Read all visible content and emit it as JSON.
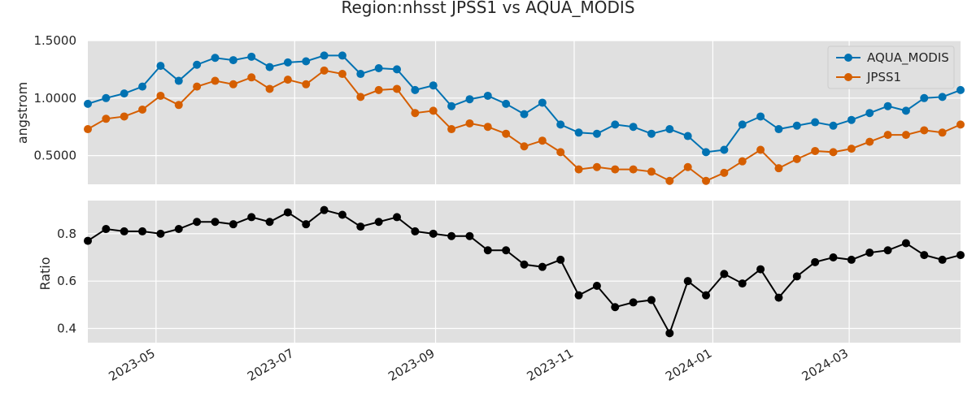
{
  "title": "Region:nhsst JPSS1 vs AQUA_MODIS",
  "colors": {
    "aqua": "#0072b2",
    "jpss": "#d55e00",
    "ratio": "#000000",
    "background": "#e0e0e0",
    "grid": "#ffffff"
  },
  "chart_data": [
    {
      "type": "line",
      "ylabel": "angstrom",
      "ylim": [
        0.25,
        1.5
      ],
      "yticks": [
        0.5,
        1.0,
        1.5
      ],
      "ytick_labels": [
        "0.5000",
        "1.0000",
        "1.5000"
      ],
      "grid": true,
      "legend_position": "top-right",
      "dates": [
        "2023-04-01",
        "2023-04-09",
        "2023-04-17",
        "2023-04-25",
        "2023-05-03",
        "2023-05-11",
        "2023-05-19",
        "2023-05-27",
        "2023-06-04",
        "2023-06-12",
        "2023-06-20",
        "2023-06-28",
        "2023-07-06",
        "2023-07-14",
        "2023-07-22",
        "2023-07-30",
        "2023-08-07",
        "2023-08-15",
        "2023-08-23",
        "2023-08-31",
        "2023-09-08",
        "2023-09-16",
        "2023-09-24",
        "2023-10-02",
        "2023-10-10",
        "2023-10-18",
        "2023-10-26",
        "2023-11-03",
        "2023-11-11",
        "2023-11-19",
        "2023-11-27",
        "2023-12-05",
        "2023-12-13",
        "2023-12-21",
        "2023-12-29",
        "2024-01-06",
        "2024-01-14",
        "2024-01-22",
        "2024-01-30",
        "2024-02-07",
        "2024-02-15",
        "2024-02-23",
        "2024-03-02",
        "2024-03-10",
        "2024-03-18",
        "2024-03-26",
        "2024-04-03",
        "2024-04-11",
        "2024-04-19"
      ],
      "series": [
        {
          "name": "AQUA_MODIS",
          "color": "#0072b2",
          "values": [
            0.95,
            1.0,
            1.04,
            1.1,
            1.28,
            1.15,
            1.29,
            1.35,
            1.33,
            1.36,
            1.27,
            1.31,
            1.32,
            1.37,
            1.37,
            1.21,
            1.26,
            1.25,
            1.07,
            1.11,
            0.93,
            0.99,
            1.02,
            0.95,
            0.86,
            0.96,
            0.77,
            0.7,
            0.69,
            0.77,
            0.75,
            0.69,
            0.73,
            0.67,
            0.53,
            0.55,
            0.77,
            0.84,
            0.73,
            0.76,
            0.79,
            0.76,
            0.81,
            0.87,
            0.93,
            0.89,
            1.0,
            1.01,
            1.07
          ]
        },
        {
          "name": "JPSS1",
          "color": "#d55e00",
          "values": [
            0.73,
            0.82,
            0.84,
            0.9,
            1.02,
            0.94,
            1.1,
            1.15,
            1.12,
            1.18,
            1.08,
            1.16,
            1.12,
            1.24,
            1.21,
            1.01,
            1.07,
            1.08,
            0.87,
            0.89,
            0.73,
            0.78,
            0.75,
            0.69,
            0.58,
            0.63,
            0.53,
            0.38,
            0.4,
            0.38,
            0.38,
            0.36,
            0.28,
            0.4,
            0.28,
            0.35,
            0.45,
            0.55,
            0.39,
            0.47,
            0.54,
            0.53,
            0.56,
            0.62,
            0.68,
            0.68,
            0.72,
            0.7,
            0.77
          ]
        }
      ]
    },
    {
      "type": "line",
      "ylabel": "Ratio",
      "ylim": [
        0.34,
        0.94
      ],
      "yticks": [
        0.4,
        0.6,
        0.8
      ],
      "ytick_labels": [
        "0.4",
        "0.6",
        "0.8"
      ],
      "grid": true,
      "x_ticks": [
        "2023-05-01",
        "2023-07-01",
        "2023-09-01",
        "2023-11-01",
        "2024-01-01",
        "2024-03-01"
      ],
      "x_tick_labels": [
        "2023-05",
        "2023-07",
        "2023-09",
        "2023-11",
        "2024-01",
        "2024-03"
      ],
      "x_range": [
        "2023-04-01",
        "2024-04-19"
      ],
      "series": [
        {
          "color": "#000000",
          "values": [
            0.77,
            0.82,
            0.81,
            0.81,
            0.8,
            0.82,
            0.85,
            0.85,
            0.84,
            0.87,
            0.85,
            0.89,
            0.84,
            0.9,
            0.88,
            0.83,
            0.85,
            0.87,
            0.81,
            0.8,
            0.79,
            0.79,
            0.73,
            0.73,
            0.67,
            0.66,
            0.69,
            0.54,
            0.58,
            0.49,
            0.51,
            0.52,
            0.38,
            0.6,
            0.54,
            0.63,
            0.59,
            0.65,
            0.53,
            0.62,
            0.68,
            0.7,
            0.69,
            0.72,
            0.73,
            0.76,
            0.71,
            0.69,
            0.71
          ]
        }
      ]
    }
  ]
}
